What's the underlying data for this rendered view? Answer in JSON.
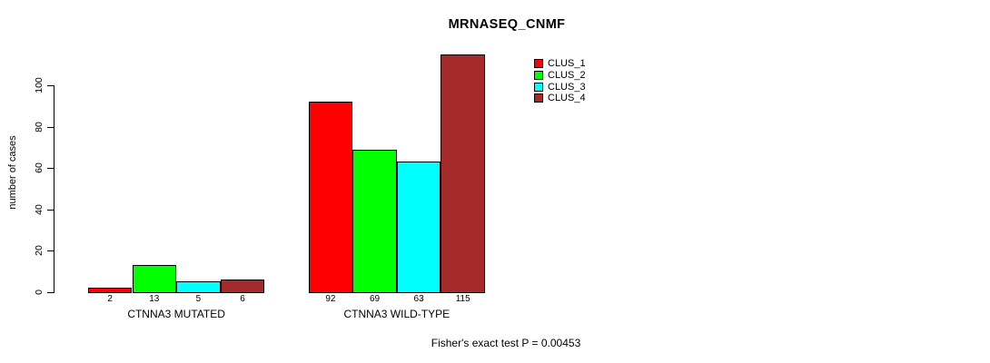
{
  "title": "MRNASEQ_CNMF",
  "footer": {
    "caption": "Fisher's exact test P = 0.00453"
  },
  "chart_data": {
    "type": "bar",
    "title": "MRNASEQ_CNMF",
    "ylabel": "number of cases",
    "xlabel": "",
    "groups": [
      "CTNNA3 MUTATED",
      "CTNNA3 WILD-TYPE"
    ],
    "series": [
      {
        "name": "CLUS_1",
        "color": "#ff0000",
        "values": [
          2,
          92
        ]
      },
      {
        "name": "CLUS_2",
        "color": "#00ff00",
        "values": [
          13,
          69
        ]
      },
      {
        "name": "CLUS_3",
        "color": "#00ffff",
        "values": [
          5,
          63
        ]
      },
      {
        "name": "CLUS_4",
        "color": "#a52a2a",
        "values": [
          6,
          115
        ]
      }
    ],
    "yticks": [
      0,
      20,
      40,
      60,
      80,
      100
    ],
    "ylim": [
      0,
      117
    ],
    "bar_value_labels": [
      [
        2,
        13,
        5,
        6
      ],
      [
        92,
        69,
        63,
        115
      ]
    ],
    "legend_position": "topright",
    "grid": false,
    "annotation": "Fisher's exact test P = 0.00453"
  }
}
